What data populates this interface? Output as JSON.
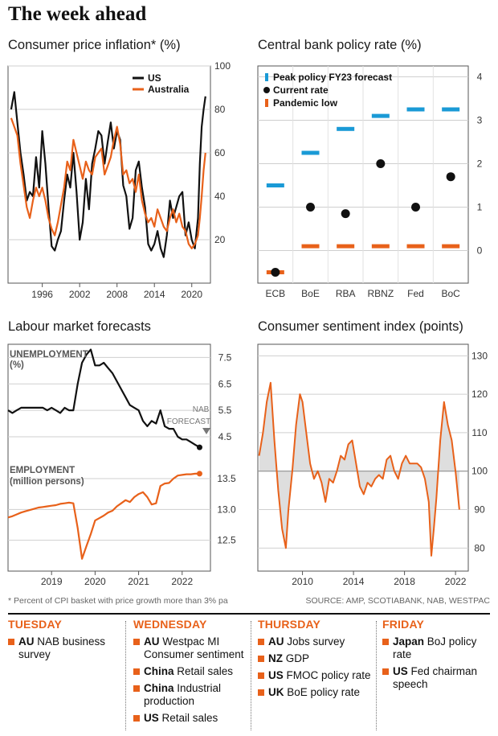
{
  "page": {
    "title": "The week ahead"
  },
  "colors": {
    "us": "#111111",
    "australia": "#e8611a",
    "peak": "#1a9ad6",
    "current": "#111111",
    "low": "#e8611a",
    "shade": "#dedede"
  },
  "chart_data": [
    {
      "id": "cpi",
      "type": "line",
      "title": "Consumer price inflation* (%)",
      "x_ticks": [
        "1996",
        "2002",
        "2008",
        "2014",
        "2020"
      ],
      "x_range": [
        1990.5,
        2023
      ],
      "y_ticks": [
        "20",
        "40",
        "60",
        "80",
        "100"
      ],
      "ylim": [
        0,
        100
      ],
      "legend": "top-right",
      "series": [
        {
          "name": "US",
          "x": [
            1991.0,
            1991.5,
            1992.0,
            1992.5,
            1993.0,
            1993.5,
            1994.0,
            1994.5,
            1995.0,
            1995.5,
            1996.0,
            1996.5,
            1997.0,
            1997.5,
            1998.0,
            1998.5,
            1999.0,
            1999.5,
            2000.0,
            2000.5,
            2001.0,
            2001.5,
            2002.0,
            2002.5,
            2003.0,
            2003.5,
            2004.0,
            2004.5,
            2005.0,
            2005.5,
            2006.0,
            2006.5,
            2007.0,
            2007.5,
            2008.0,
            2008.5,
            2009.0,
            2009.5,
            2010.0,
            2010.5,
            2011.0,
            2011.5,
            2012.0,
            2012.5,
            2013.0,
            2013.5,
            2014.0,
            2014.5,
            2015.0,
            2015.5,
            2016.0,
            2016.5,
            2017.0,
            2017.5,
            2018.0,
            2018.5,
            2019.0,
            2019.5,
            2020.0,
            2020.5,
            2021.0,
            2021.3,
            2021.6,
            2021.9,
            2022.2
          ],
          "values": [
            80,
            88,
            74,
            60,
            50,
            38,
            42,
            40,
            58,
            44,
            70,
            55,
            35,
            17,
            15,
            20,
            24,
            38,
            50,
            44,
            60,
            42,
            20,
            28,
            48,
            34,
            55,
            62,
            70,
            68,
            55,
            65,
            74,
            62,
            70,
            66,
            45,
            40,
            25,
            30,
            52,
            56,
            44,
            35,
            18,
            15,
            18,
            24,
            16,
            12,
            22,
            38,
            30,
            35,
            40,
            42,
            22,
            28,
            20,
            16,
            30,
            55,
            72,
            80,
            86
          ]
        },
        {
          "name": "Australia",
          "x": [
            1991.0,
            1991.5,
            1992.0,
            1992.5,
            1993.0,
            1993.5,
            1994.0,
            1994.5,
            1995.0,
            1995.5,
            1996.0,
            1996.5,
            1997.0,
            1997.5,
            1998.0,
            1998.5,
            1999.0,
            1999.5,
            2000.0,
            2000.5,
            2001.0,
            2001.5,
            2002.0,
            2002.5,
            2003.0,
            2003.5,
            2004.0,
            2004.5,
            2005.0,
            2005.5,
            2006.0,
            2006.5,
            2007.0,
            2007.5,
            2008.0,
            2008.5,
            2009.0,
            2009.5,
            2010.0,
            2010.5,
            2011.0,
            2011.5,
            2012.0,
            2012.5,
            2013.0,
            2013.5,
            2014.0,
            2014.5,
            2015.0,
            2015.5,
            2016.0,
            2016.5,
            2017.0,
            2017.5,
            2018.0,
            2018.5,
            2019.0,
            2019.5,
            2020.0,
            2020.5,
            2021.0,
            2021.3,
            2021.6,
            2021.9,
            2022.2
          ],
          "values": [
            76,
            72,
            68,
            55,
            45,
            35,
            30,
            38,
            44,
            40,
            44,
            38,
            30,
            25,
            22,
            28,
            36,
            44,
            56,
            52,
            66,
            60,
            54,
            48,
            56,
            52,
            50,
            58,
            60,
            62,
            50,
            54,
            58,
            66,
            72,
            64,
            50,
            52,
            46,
            48,
            42,
            50,
            38,
            32,
            28,
            30,
            26,
            34,
            30,
            26,
            24,
            30,
            34,
            28,
            32,
            26,
            24,
            18,
            16,
            18,
            22,
            30,
            40,
            52,
            60
          ]
        }
      ]
    },
    {
      "id": "policy",
      "type": "scatter",
      "title": "Central bank policy rate (%)",
      "categories": [
        "ECB",
        "BoE",
        "RBA",
        "RBNZ",
        "Fed",
        "BoC"
      ],
      "y_ticks": [
        "0",
        "1",
        "2",
        "3",
        "4"
      ],
      "ylim": [
        -0.75,
        4.25
      ],
      "legend": "top-left",
      "series": [
        {
          "name": "Peak policy FY23 forecast",
          "values": [
            1.5,
            2.25,
            2.8,
            3.1,
            3.25,
            3.25
          ]
        },
        {
          "name": "Current rate",
          "values": [
            -0.5,
            1.0,
            0.85,
            2.0,
            1.0,
            1.7
          ]
        },
        {
          "name": "Pandemic low",
          "values": [
            -0.5,
            0.1,
            0.1,
            0.1,
            0.1,
            0.1
          ]
        }
      ]
    },
    {
      "id": "labour",
      "type": "line",
      "title": "Labour market forecasts",
      "x_ticks": [
        "2019",
        "2020",
        "2021",
        "2022"
      ],
      "x_range": [
        2018.0,
        2022.65
      ],
      "panels": [
        {
          "label": "UNEMPLOYMENT",
          "unit": "(%)",
          "y_ticks": [
            "4.5",
            "5.5",
            "6.5",
            "7.5"
          ],
          "ylim": [
            3.8,
            8.0
          ],
          "x": [
            2018.0,
            2018.1,
            2018.2,
            2018.3,
            2018.4,
            2018.5,
            2018.6,
            2018.7,
            2018.8,
            2018.9,
            2019.0,
            2019.1,
            2019.2,
            2019.3,
            2019.4,
            2019.5,
            2019.6,
            2019.7,
            2019.8,
            2019.9,
            2020.0,
            2020.1,
            2020.2,
            2020.3,
            2020.4,
            2020.5,
            2020.6,
            2020.7,
            2020.8,
            2020.9,
            2021.0,
            2021.1,
            2021.2,
            2021.3,
            2021.4,
            2021.5,
            2021.6,
            2021.7,
            2021.8,
            2021.9,
            2022.0,
            2022.1,
            2022.2,
            2022.3,
            2022.4
          ],
          "values": [
            5.5,
            5.4,
            5.5,
            5.6,
            5.6,
            5.6,
            5.6,
            5.6,
            5.6,
            5.5,
            5.6,
            5.5,
            5.4,
            5.6,
            5.5,
            5.5,
            6.5,
            7.3,
            7.6,
            7.8,
            7.2,
            7.2,
            7.3,
            7.1,
            6.9,
            6.6,
            6.3,
            6.0,
            5.7,
            5.6,
            5.5,
            5.1,
            4.9,
            5.1,
            5.0,
            5.5,
            4.9,
            4.8,
            4.8,
            4.5,
            4.4,
            4.4,
            4.3,
            4.2,
            4.1
          ]
        },
        {
          "label": "EMPLOYMENT",
          "unit": "(million persons)",
          "y_ticks": [
            "12.5",
            "13.0",
            "13.5"
          ],
          "ylim": [
            12.0,
            13.8
          ],
          "x": [
            2018.0,
            2018.1,
            2018.2,
            2018.3,
            2018.4,
            2018.5,
            2018.6,
            2018.7,
            2018.8,
            2018.9,
            2019.0,
            2019.1,
            2019.2,
            2019.3,
            2019.4,
            2019.5,
            2019.6,
            2019.7,
            2019.8,
            2019.9,
            2020.0,
            2020.1,
            2020.2,
            2020.3,
            2020.4,
            2020.5,
            2020.6,
            2020.7,
            2020.8,
            2020.9,
            2021.0,
            2021.1,
            2021.2,
            2021.3,
            2021.4,
            2021.5,
            2021.6,
            2021.7,
            2021.8,
            2021.9,
            2022.0,
            2022.1,
            2022.2,
            2022.3,
            2022.4
          ],
          "values": [
            12.87,
            12.89,
            12.92,
            12.95,
            12.97,
            12.99,
            13.01,
            13.03,
            13.04,
            13.05,
            13.06,
            13.07,
            13.09,
            13.1,
            13.11,
            13.1,
            12.7,
            12.2,
            12.4,
            12.6,
            12.82,
            12.86,
            12.9,
            12.95,
            12.98,
            13.05,
            13.1,
            13.15,
            13.12,
            13.2,
            13.25,
            13.28,
            13.2,
            13.08,
            13.1,
            13.38,
            13.42,
            13.43,
            13.5,
            13.55,
            13.56,
            13.57,
            13.57,
            13.58,
            13.58
          ]
        }
      ],
      "annotation": [
        "NAB",
        "FORECAST"
      ]
    },
    {
      "id": "sentiment",
      "type": "area",
      "title": "Consumer sentiment index (points)",
      "x_ticks": [
        "2010",
        "2014",
        "2018",
        "2022"
      ],
      "x_range": [
        2006.5,
        2023
      ],
      "y_ticks": [
        "80",
        "90",
        "100",
        "110",
        "120",
        "130"
      ],
      "ylim": [
        74,
        133
      ],
      "baseline": 100,
      "series": [
        {
          "name": "",
          "x": [
            2006.6,
            2006.9,
            2007.2,
            2007.5,
            2007.8,
            2008.1,
            2008.4,
            2008.7,
            2008.9,
            2009.2,
            2009.5,
            2009.8,
            2010.0,
            2010.3,
            2010.6,
            2010.9,
            2011.2,
            2011.5,
            2011.8,
            2012.1,
            2012.4,
            2012.7,
            2013.0,
            2013.3,
            2013.6,
            2013.9,
            2014.2,
            2014.5,
            2014.8,
            2015.1,
            2015.4,
            2015.7,
            2016.0,
            2016.3,
            2016.6,
            2016.9,
            2017.2,
            2017.5,
            2017.8,
            2018.1,
            2018.4,
            2018.7,
            2019.0,
            2019.3,
            2019.6,
            2019.9,
            2020.1,
            2020.3,
            2020.5,
            2020.8,
            2021.1,
            2021.4,
            2021.7,
            2022.0,
            2022.3
          ],
          "values": [
            104,
            110,
            118,
            123,
            108,
            95,
            85,
            80,
            90,
            100,
            112,
            120,
            118,
            110,
            102,
            98,
            100,
            97,
            92,
            98,
            97,
            100,
            104,
            103,
            107,
            108,
            102,
            96,
            94,
            97,
            96,
            98,
            99,
            98,
            103,
            104,
            100,
            98,
            102,
            104,
            102,
            102,
            102,
            101,
            98,
            92,
            78,
            85,
            93,
            108,
            118,
            112,
            108,
            100,
            90
          ]
        }
      ]
    }
  ],
  "labour_labels": [
    "UNEMPLOYMENT",
    "(%)",
    "EMPLOYMENT",
    "(million persons)"
  ],
  "footnote": "* Percent of CPI basket with price growth more than 3% pa",
  "source": "SOURCE: AMP, SCOTIABANK, NAB, WESTPAC",
  "calendar": [
    {
      "day": "TUESDAY",
      "events": [
        {
          "country": "AU",
          "text": "NAB business survey"
        }
      ]
    },
    {
      "day": "WEDNESDAY",
      "events": [
        {
          "country": "AU",
          "text": "Westpac MI Consumer sentiment"
        },
        {
          "country": "China",
          "text": "Retail sales"
        },
        {
          "country": "China",
          "text": "Industrial production"
        },
        {
          "country": "US",
          "text": "Retail sales"
        }
      ]
    },
    {
      "day": "THURSDAY",
      "events": [
        {
          "country": "AU",
          "text": "Jobs survey"
        },
        {
          "country": "NZ",
          "text": "GDP"
        },
        {
          "country": "US",
          "text": "FMOC policy rate"
        },
        {
          "country": "UK",
          "text": "BoE policy rate"
        }
      ]
    },
    {
      "day": "FRIDAY",
      "events": [
        {
          "country": "Japan",
          "text": "BoJ policy rate"
        },
        {
          "country": "US",
          "text": "Fed chairman speech"
        }
      ]
    }
  ]
}
